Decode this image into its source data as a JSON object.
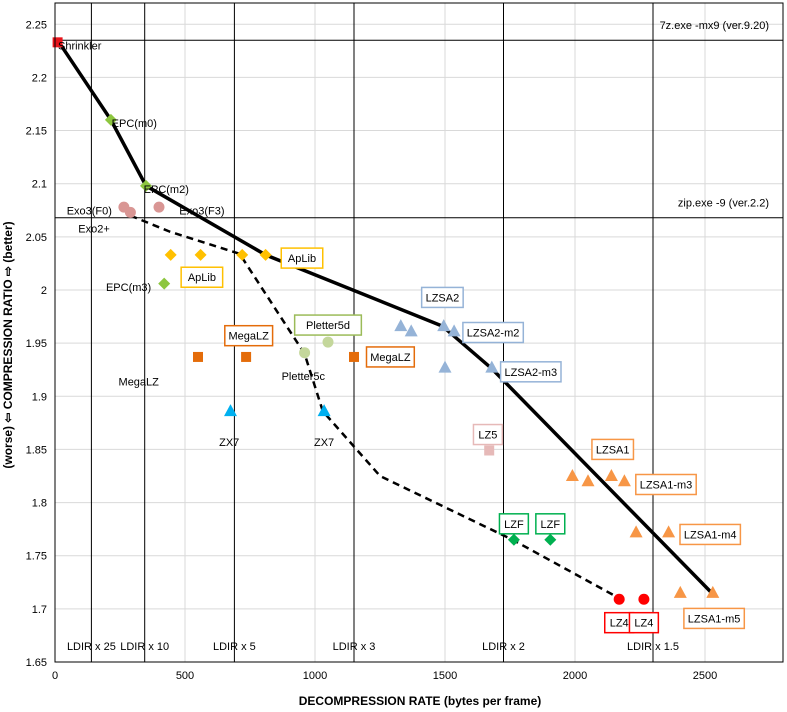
{
  "chart_data": {
    "type": "scatter",
    "xlabel": "DECOMPRESSION RATE (bytes per frame)",
    "ylabel": "(worse)  ⇦  COMPRESSION RATIO  ⇨  (better)",
    "xlim": [
      0,
      2800
    ],
    "ylim": [
      1.65,
      2.27
    ],
    "xticks": [
      0,
      500,
      1000,
      1500,
      2000,
      2500
    ],
    "yticks": [
      1.65,
      1.7,
      1.75,
      1.8,
      1.85,
      1.9,
      1.95,
      2,
      2.05,
      2.1,
      2.15,
      2.2,
      2.25
    ],
    "ytick_labels": [
      "1.65",
      "1.7",
      "1.75",
      "1.8",
      "1.85",
      "1.9",
      "1.95",
      "2",
      "2.05",
      "2.1",
      "2.15",
      "2.2",
      "2.25"
    ],
    "grid": "major",
    "reference_lines": {
      "horizontal": [
        {
          "y": 2.235,
          "label": "7z.exe -mx9 (ver.9.20)"
        },
        {
          "y": 2.068,
          "label": "zip.exe -9 (ver.2.2)"
        }
      ],
      "vertical": [
        {
          "x": 140,
          "label": "LDIR x 25"
        },
        {
          "x": 345,
          "label": "LDIR x 10"
        },
        {
          "x": 690,
          "label": "LDIR x 5"
        },
        {
          "x": 1150,
          "label": "LDIR x 3"
        },
        {
          "x": 1725,
          "label": "LDIR x 2"
        },
        {
          "x": 2300,
          "label": "LDIR x 1.5"
        }
      ]
    },
    "pareto_front": {
      "style": "solid",
      "color": "#000000",
      "points": [
        [
          10,
          2.235
        ],
        [
          215,
          2.16
        ],
        [
          350,
          2.098
        ],
        [
          810,
          2.033
        ],
        [
          1490,
          1.966
        ],
        [
          1680,
          1.926
        ],
        [
          2530,
          1.714
        ]
      ]
    },
    "secondary_front": {
      "style": "dashed",
      "color": "#000000",
      "points": [
        [
          290,
          2.07
        ],
        [
          440,
          2.055
        ],
        [
          710,
          2.034
        ],
        [
          960,
          1.94
        ],
        [
          1030,
          1.886
        ],
        [
          1250,
          1.825
        ],
        [
          1760,
          1.765
        ],
        [
          2170,
          1.71
        ]
      ]
    },
    "series": [
      {
        "name": "Shrinkler",
        "shape": "square",
        "color": "#e8141b",
        "points": [
          {
            "x": 10,
            "y": 2.233,
            "label": "Shrinkler"
          }
        ]
      },
      {
        "name": "EPC",
        "shape": "diamond",
        "color": "#8dc63f",
        "points": [
          {
            "x": 215,
            "y": 2.16,
            "label": "EPC(m0)"
          },
          {
            "x": 350,
            "y": 2.098,
            "label": "EPC(m2)"
          },
          {
            "x": 420,
            "y": 2.006,
            "label": "EPC(m3)"
          }
        ]
      },
      {
        "name": "Exo3",
        "shape": "circle",
        "color": "#d99694",
        "points": [
          {
            "x": 265,
            "y": 2.078,
            "label": "Exo3(F0)"
          },
          {
            "x": 400,
            "y": 2.078,
            "label": "Exo3(F3)"
          },
          {
            "x": 290,
            "y": 2.073,
            "label": "Exo2+"
          }
        ]
      },
      {
        "name": "ApLib",
        "shape": "diamond",
        "color": "#ffc000",
        "points": [
          {
            "x": 445,
            "y": 2.033,
            "label": ""
          },
          {
            "x": 560,
            "y": 2.033,
            "label": "ApLib"
          },
          {
            "x": 720,
            "y": 2.033,
            "label": ""
          },
          {
            "x": 810,
            "y": 2.033,
            "label": "ApLib"
          }
        ]
      },
      {
        "name": "MegaLZ",
        "shape": "square",
        "color": "#e46c0a",
        "points": [
          {
            "x": 550,
            "y": 1.937,
            "label": "MegaLZ"
          },
          {
            "x": 735,
            "y": 1.937,
            "label": "MegaLZ"
          },
          {
            "x": 1150,
            "y": 1.937,
            "label": "MegaLZ"
          }
        ]
      },
      {
        "name": "Pletter5",
        "shape": "circle",
        "color": "#c4d79b",
        "points": [
          {
            "x": 960,
            "y": 1.941,
            "label": "Pletter5c"
          },
          {
            "x": 1050,
            "y": 1.951,
            "label": "Pletter5d"
          }
        ]
      },
      {
        "name": "ZX7",
        "shape": "triangle",
        "color": "#00b0f0",
        "points": [
          {
            "x": 675,
            "y": 1.886,
            "label": "ZX7"
          },
          {
            "x": 1035,
            "y": 1.886,
            "label": "ZX7"
          }
        ]
      },
      {
        "name": "LZSA2",
        "shape": "triangle",
        "color": "#95b3d7",
        "points": [
          {
            "x": 1330,
            "y": 1.966,
            "label": ""
          },
          {
            "x": 1370,
            "y": 1.961,
            "label": ""
          },
          {
            "x": 1495,
            "y": 1.966,
            "label": "LZSA2"
          },
          {
            "x": 1535,
            "y": 1.961,
            "label": "LZSA2-m2"
          },
          {
            "x": 1500,
            "y": 1.927,
            "label": ""
          },
          {
            "x": 1680,
            "y": 1.927,
            "label": "LZSA2-m3"
          }
        ]
      },
      {
        "name": "LZ5",
        "shape": "square",
        "color": "#e6b9b8",
        "points": [
          {
            "x": 1670,
            "y": 1.849,
            "label": "LZ5"
          }
        ]
      },
      {
        "name": "LZF",
        "shape": "diamond",
        "color": "#00b050",
        "points": [
          {
            "x": 1765,
            "y": 1.765,
            "label": "LZF"
          },
          {
            "x": 1905,
            "y": 1.765,
            "label": "LZF"
          }
        ]
      },
      {
        "name": "LZSA1",
        "shape": "triangle",
        "color": "#f79646",
        "points": [
          {
            "x": 1990,
            "y": 1.825,
            "label": ""
          },
          {
            "x": 2050,
            "y": 1.82,
            "label": ""
          },
          {
            "x": 2140,
            "y": 1.825,
            "label": "LZSA1"
          },
          {
            "x": 2190,
            "y": 1.82,
            "label": "LZSA1-m3"
          },
          {
            "x": 2235,
            "y": 1.772,
            "label": ""
          },
          {
            "x": 2360,
            "y": 1.772,
            "label": "LZSA1-m4"
          },
          {
            "x": 2405,
            "y": 1.715,
            "label": ""
          },
          {
            "x": 2530,
            "y": 1.715,
            "label": "LZSA1-m5"
          }
        ]
      },
      {
        "name": "LZ4",
        "shape": "circle",
        "color": "#ff0000",
        "points": [
          {
            "x": 2170,
            "y": 1.709,
            "label": "LZ4"
          },
          {
            "x": 2265,
            "y": 1.709,
            "label": "LZ4"
          }
        ]
      }
    ],
    "point_labels": [
      {
        "text": "Shrinkler",
        "x": 95,
        "y": 2.23,
        "boxed": false,
        "color": "#000000"
      },
      {
        "text": "EPC(m0)",
        "x": 305,
        "y": 2.157,
        "boxed": false,
        "color": "#000000"
      },
      {
        "text": "EPC(m2)",
        "x": 428,
        "y": 2.095,
        "boxed": false,
        "color": "#000000"
      },
      {
        "text": "Exo3(F0)",
        "x": 132,
        "y": 2.075,
        "boxed": false,
        "color": "#000000"
      },
      {
        "text": "Exo3(F3)",
        "x": 565,
        "y": 2.075,
        "boxed": false,
        "color": "#000000"
      },
      {
        "text": "Exo2+",
        "x": 150,
        "y": 2.058,
        "boxed": false,
        "color": "#000000"
      },
      {
        "text": "EPC(m3)",
        "x": 283,
        "y": 2.003,
        "boxed": false,
        "color": "#000000"
      },
      {
        "text": "ApLib",
        "x": 565,
        "y": 2.012,
        "boxed": true,
        "color": "#ffc000"
      },
      {
        "text": "ApLib",
        "x": 950,
        "y": 2.03,
        "boxed": true,
        "color": "#ffc000"
      },
      {
        "text": "MegaLZ",
        "x": 322,
        "y": 1.914,
        "boxed": false,
        "color": "#000000"
      },
      {
        "text": "MegaLZ",
        "x": 745,
        "y": 1.957,
        "boxed": true,
        "color": "#e46c0a"
      },
      {
        "text": "MegaLZ",
        "x": 1290,
        "y": 1.937,
        "boxed": true,
        "color": "#e46c0a"
      },
      {
        "text": "Pletter5d",
        "x": 1050,
        "y": 1.967,
        "boxed": true,
        "color": "#9bbb59"
      },
      {
        "text": "Pletter5c",
        "x": 955,
        "y": 1.919,
        "boxed": false,
        "color": "#000000"
      },
      {
        "text": "ZX7",
        "x": 670,
        "y": 1.857,
        "boxed": false,
        "color": "#000000"
      },
      {
        "text": "ZX7",
        "x": 1035,
        "y": 1.857,
        "boxed": false,
        "color": "#000000"
      },
      {
        "text": "LZSA2",
        "x": 1490,
        "y": 1.993,
        "boxed": true,
        "color": "#95b3d7"
      },
      {
        "text": "LZSA2-m2",
        "x": 1685,
        "y": 1.96,
        "boxed": true,
        "color": "#95b3d7"
      },
      {
        "text": "LZSA2-m3",
        "x": 1830,
        "y": 1.923,
        "boxed": true,
        "color": "#95b3d7"
      },
      {
        "text": "LZ5",
        "x": 1665,
        "y": 1.864,
        "boxed": true,
        "color": "#e6b9b8"
      },
      {
        "text": "LZSA1",
        "x": 2145,
        "y": 1.85,
        "boxed": true,
        "color": "#f79646"
      },
      {
        "text": "LZSA1-m3",
        "x": 2350,
        "y": 1.817,
        "boxed": true,
        "color": "#f79646"
      },
      {
        "text": "LZSA1-m4",
        "x": 2520,
        "y": 1.77,
        "boxed": true,
        "color": "#f79646"
      },
      {
        "text": "LZSA1-m5",
        "x": 2535,
        "y": 1.691,
        "boxed": true,
        "color": "#f79646"
      },
      {
        "text": "LZF",
        "x": 1765,
        "y": 1.78,
        "boxed": true,
        "color": "#00b050"
      },
      {
        "text": "LZF",
        "x": 1905,
        "y": 1.78,
        "boxed": true,
        "color": "#00b050"
      },
      {
        "text": "LZ4",
        "x": 2170,
        "y": 1.687,
        "boxed": true,
        "color": "#ff0000"
      },
      {
        "text": "LZ4",
        "x": 2265,
        "y": 1.687,
        "boxed": true,
        "color": "#ff0000"
      }
    ]
  }
}
